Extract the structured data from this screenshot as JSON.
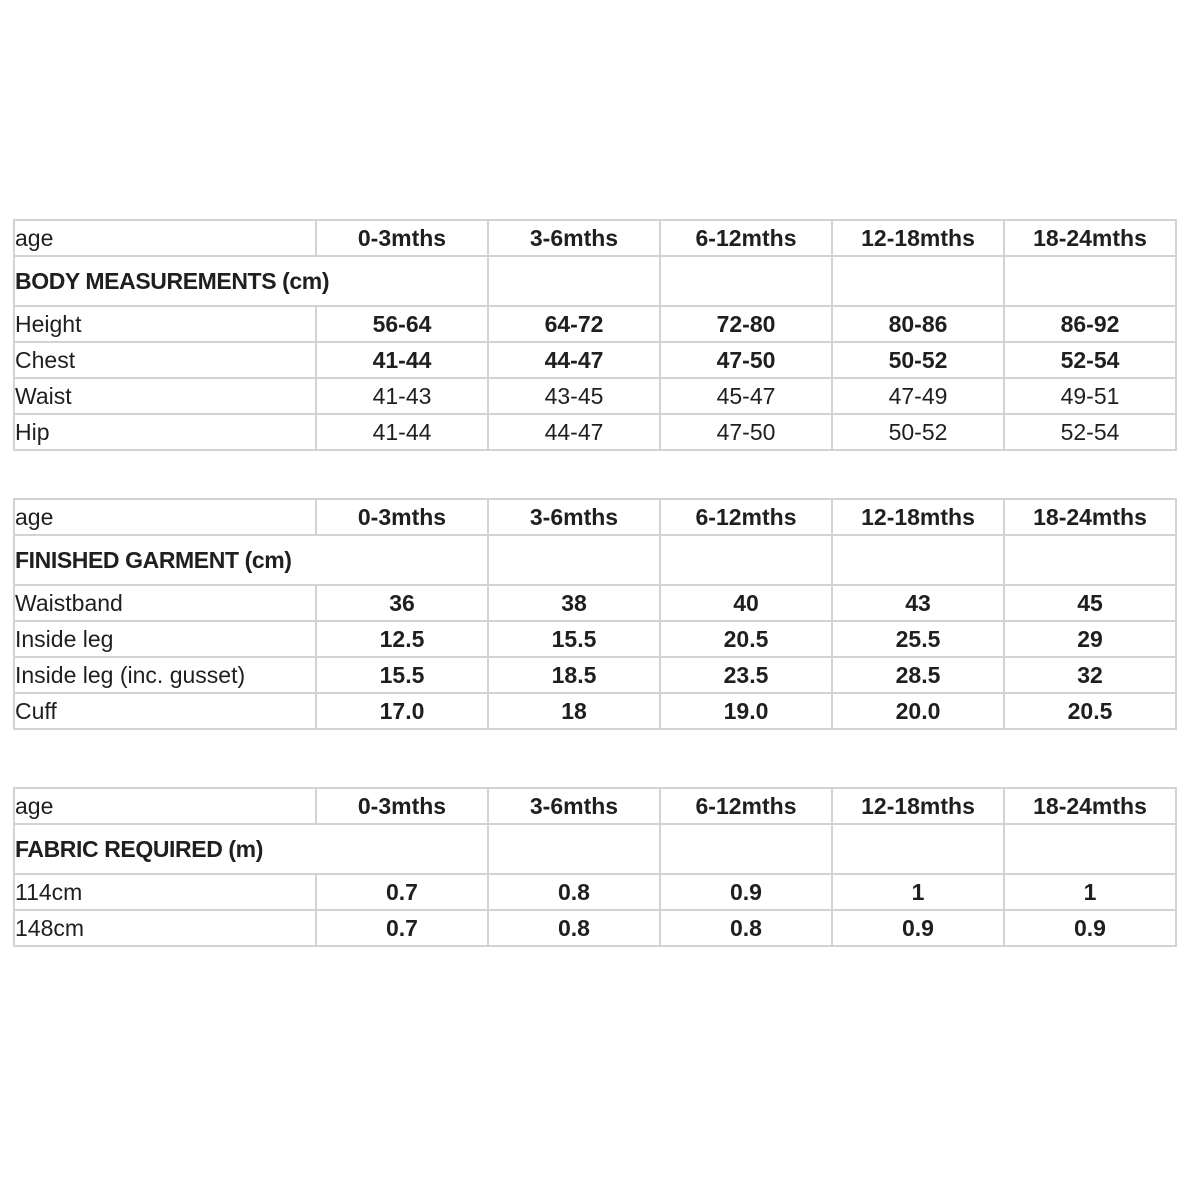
{
  "page": {
    "background": "#ffffff",
    "grid_color": "#d3d3d3",
    "text_color": "#1f1f1f"
  },
  "age_label": "age",
  "age_columns": [
    "0-3mths",
    "3-6mths",
    "6-12mths",
    "12-18mths",
    "18-24mths"
  ],
  "tables": [
    {
      "id": "body-measurements",
      "title": "BODY MEASUREMENTS (cm)",
      "rows": [
        {
          "label": "Height",
          "bold": true,
          "values": [
            "56-64",
            "64-72",
            "72-80",
            "80-86",
            "86-92"
          ]
        },
        {
          "label": "Chest",
          "bold": true,
          "values": [
            "41-44",
            "44-47",
            "47-50",
            "50-52",
            "52-54"
          ]
        },
        {
          "label": "Waist",
          "bold": false,
          "values": [
            "41-43",
            "43-45",
            "45-47",
            "47-49",
            "49-51"
          ]
        },
        {
          "label": "Hip",
          "bold": false,
          "values": [
            "41-44",
            "44-47",
            "47-50",
            "50-52",
            "52-54"
          ]
        }
      ]
    },
    {
      "id": "finished-garment",
      "title": "FINISHED GARMENT (cm)",
      "rows": [
        {
          "label": "Waistband",
          "bold": true,
          "values": [
            "36",
            "38",
            "40",
            "43",
            "45"
          ]
        },
        {
          "label": "Inside leg",
          "bold": true,
          "values": [
            "12.5",
            "15.5",
            "20.5",
            "25.5",
            "29"
          ]
        },
        {
          "label": "Inside leg (inc. gusset)",
          "bold": true,
          "values": [
            "15.5",
            "18.5",
            "23.5",
            "28.5",
            "32"
          ]
        },
        {
          "label": "Cuff",
          "bold": true,
          "values": [
            "17.0",
            "18",
            "19.0",
            "20.0",
            "20.5"
          ]
        }
      ]
    },
    {
      "id": "fabric-required",
      "title": "FABRIC REQUIRED (m)",
      "rows": [
        {
          "label": "114cm",
          "bold": true,
          "values": [
            "0.7",
            "0.8",
            "0.9",
            "1",
            "1"
          ]
        },
        {
          "label": "148cm",
          "bold": true,
          "values": [
            "0.7",
            "0.8",
            "0.8",
            "0.9",
            "0.9"
          ]
        }
      ]
    }
  ],
  "chart_data": [
    {
      "type": "table",
      "title": "BODY MEASUREMENTS (cm)",
      "categories": [
        "0-3mths",
        "3-6mths",
        "6-12mths",
        "12-18mths",
        "18-24mths"
      ],
      "series": [
        {
          "name": "Height",
          "values": [
            "56-64",
            "64-72",
            "72-80",
            "80-86",
            "86-92"
          ]
        },
        {
          "name": "Chest",
          "values": [
            "41-44",
            "44-47",
            "47-50",
            "50-52",
            "52-54"
          ]
        },
        {
          "name": "Waist",
          "values": [
            "41-43",
            "43-45",
            "45-47",
            "47-49",
            "49-51"
          ]
        },
        {
          "name": "Hip",
          "values": [
            "41-44",
            "44-47",
            "47-50",
            "50-52",
            "52-54"
          ]
        }
      ]
    },
    {
      "type": "table",
      "title": "FINISHED GARMENT (cm)",
      "categories": [
        "0-3mths",
        "3-6mths",
        "6-12mths",
        "12-18mths",
        "18-24mths"
      ],
      "series": [
        {
          "name": "Waistband",
          "values": [
            36,
            38,
            40,
            43,
            45
          ]
        },
        {
          "name": "Inside leg",
          "values": [
            12.5,
            15.5,
            20.5,
            25.5,
            29
          ]
        },
        {
          "name": "Inside leg (inc. gusset)",
          "values": [
            15.5,
            18.5,
            23.5,
            28.5,
            32
          ]
        },
        {
          "name": "Cuff",
          "values": [
            17.0,
            18,
            19.0,
            20.0,
            20.5
          ]
        }
      ]
    },
    {
      "type": "table",
      "title": "FABRIC REQUIRED (m)",
      "categories": [
        "0-3mths",
        "3-6mths",
        "6-12mths",
        "12-18mths",
        "18-24mths"
      ],
      "series": [
        {
          "name": "114cm",
          "values": [
            0.7,
            0.8,
            0.9,
            1,
            1
          ]
        },
        {
          "name": "148cm",
          "values": [
            0.7,
            0.8,
            0.8,
            0.9,
            0.9
          ]
        }
      ]
    }
  ]
}
